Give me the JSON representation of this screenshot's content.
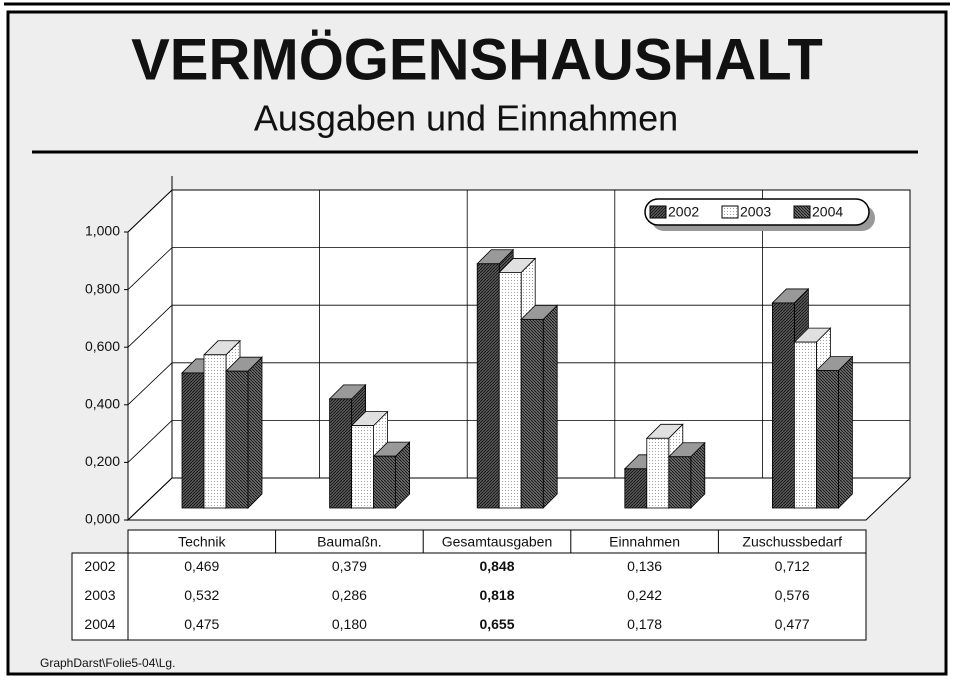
{
  "chart_data": {
    "type": "bar3d",
    "title": "VERMÖGENSHAUSHALT",
    "subtitle": "Ausgaben und Einnahmen",
    "footer": "GraphDarst\\Folie5-04\\Lg.",
    "categories": [
      "Technik",
      "Baumaßn.",
      "Gesamtausgaben",
      "Einnahmen",
      "Zuschussbedarf"
    ],
    "series": [
      {
        "name": "2002",
        "color": "#5a5a5a",
        "values": [
          0.469,
          0.379,
          0.848,
          0.136,
          0.712
        ],
        "value_labels": [
          "0,469",
          "0,379",
          "0,848",
          "0,136",
          "0,712"
        ]
      },
      {
        "name": "2003",
        "color": "#ffffff",
        "values": [
          0.532,
          0.286,
          0.818,
          0.242,
          0.576
        ],
        "value_labels": [
          "0,532",
          "0,286",
          "0,818",
          "0,242",
          "0,576"
        ]
      },
      {
        "name": "2004",
        "color": "#6e6e6e",
        "values": [
          0.475,
          0.18,
          0.655,
          0.178,
          0.477
        ],
        "value_labels": [
          "0,475",
          "0,180",
          "0,655",
          "0,178",
          "0,477"
        ]
      }
    ],
    "ylim": [
      0,
      1
    ],
    "yticks": [
      {
        "value": 0,
        "label": "0,000"
      },
      {
        "value": 0.2,
        "label": "0,200"
      },
      {
        "value": 0.4,
        "label": "0,400"
      },
      {
        "value": 0.6,
        "label": "0,600"
      },
      {
        "value": 0.8,
        "label": "0,800"
      },
      {
        "value": 1,
        "label": "1,000"
      }
    ],
    "grid": true,
    "legend": "top-right"
  }
}
